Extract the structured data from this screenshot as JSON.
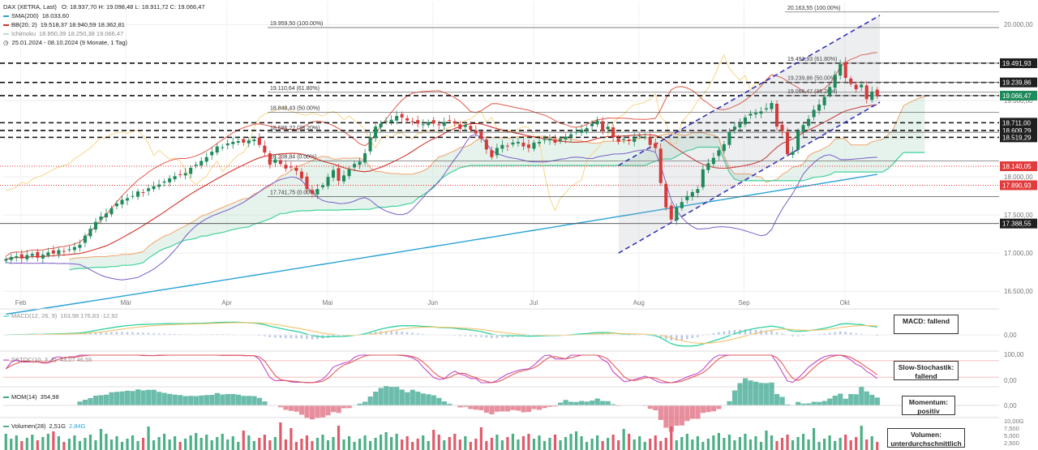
{
  "legend": {
    "main": "DAX (XETRA, Last)",
    "ohlc": "O: 18.937,70  H: 19.098,48  L: 18.911,72  C: 19.066,47",
    "sma_name": "SMA(200)",
    "sma_value": "18.033,60",
    "bb_name": "BB(20, 2)",
    "bb_values": "19.518,37  18.940,59  18.362,81",
    "ichimoku_name": "Ichimoku",
    "ichimoku_values": "18.850,39  18.250,38  19.066,47",
    "period": "25.01.2024 - 08.10.2024  (9 Monate, 1 Tag)",
    "macd_name": "MACD(12, 26, 9)",
    "macd_values": "163,98  176,83  -12,92",
    "sstoc_name": "SSTOC(10, 3, 3)",
    "sstoc_values": "43,07  46,55",
    "mom_name": "MOM(14)",
    "mom_value": "354,98",
    "vol_name": "Volumen(28)",
    "vol_value": "2,51G",
    "vol_avg": "2,84G"
  },
  "boxes": {
    "macd": "MACD: fallend",
    "stoch": "Slow-Stochastik: fallend",
    "mom": "Momentum: positiv",
    "vol": "Volumen: unterdurchschnittlich"
  },
  "colors": {
    "up": "#1f8a5b",
    "down": "#d63a3a",
    "sma": "#2aa3d6",
    "bb_mid": "#d0342c",
    "bb_band": "#e05a4a",
    "bb_low": "#7b5cc9",
    "kumo": "#b8dcc8",
    "ichi_a": "#f2a36b",
    "ichi_b": "#3fd39b",
    "chikou": "#f7d78a",
    "channel": "#2a2ab8",
    "macd": "#2ed1a0",
    "signal": "#f2c36b",
    "hist": "#b7c6e6",
    "stoch_k": "#c04bc8",
    "stoch_d": "#e25b5b",
    "mom": "#3aa58e",
    "mom_neg": "#e06a7e",
    "vol_up": "#4caf85",
    "vol_down": "#e05a6a"
  },
  "chart_data": [
    {
      "type": "candlestick",
      "title": "DAX (XETRA, Last)",
      "x_range": [
        "25.01.2024",
        "08.10.2024"
      ],
      "xticks": [
        "Feb",
        "Mär",
        "Apr",
        "Mai",
        "Jun",
        "Jul",
        "Aug",
        "Sep",
        "Okt"
      ],
      "xtick_pos": [
        0.02,
        0.14,
        0.255,
        0.37,
        0.49,
        0.605,
        0.725,
        0.845,
        0.96
      ],
      "yticks": [
        16500,
        17000,
        17500,
        18000,
        18500,
        19000,
        19500,
        20000
      ],
      "ytick_labels": [
        "16.500,00",
        "17.000,00",
        "17.500,00",
        "18.000,00",
        "18.500,00",
        "19.000,00",
        "19.500,00",
        "20.000,00"
      ],
      "ylim": [
        16300,
        20300
      ],
      "close": [
        16920,
        16950,
        16960,
        16930,
        16975,
        16990,
        16940,
        16980,
        17010,
        16995,
        17040,
        17020,
        17050,
        17080,
        17110,
        17230,
        17320,
        17410,
        17480,
        17520,
        17590,
        17650,
        17700,
        17720,
        17750,
        17810,
        17790,
        17850,
        17880,
        17900,
        17940,
        17980,
        18010,
        18030,
        18050,
        18120,
        18160,
        18210,
        18260,
        18330,
        18400,
        18390,
        18440,
        18460,
        18470,
        18450,
        18480,
        18490,
        18420,
        18320,
        18160,
        18230,
        18170,
        18110,
        18130,
        18080,
        17980,
        17840,
        17780,
        17840,
        17890,
        18000,
        18090,
        17950,
        18020,
        18100,
        18170,
        18200,
        18310,
        18520,
        18660,
        18700,
        18730,
        18750,
        18800,
        18780,
        18740,
        18720,
        18700,
        18690,
        18720,
        18700,
        18680,
        18720,
        18740,
        18700,
        18630,
        18680,
        18620,
        18570,
        18500,
        18360,
        18260,
        18380,
        18420,
        18400,
        18450,
        18460,
        18400,
        18380,
        18450,
        18460,
        18490,
        18500,
        18450,
        18500,
        18530,
        18560,
        18590,
        18620,
        18640,
        18700,
        18740,
        18600,
        18660,
        18520,
        18460,
        18500,
        18470,
        18510,
        18540,
        18530,
        18420,
        18380,
        17920,
        17600,
        17440,
        17600,
        17670,
        17750,
        17800,
        17840,
        18100,
        18180,
        18250,
        18350,
        18430,
        18590,
        18660,
        18700,
        18780,
        18830,
        18840,
        18860,
        18900,
        18970,
        18660,
        18600,
        18300,
        18330,
        18600,
        18680,
        18760,
        18880,
        18950,
        19050,
        19180,
        19340,
        19480,
        19300,
        19220,
        19150,
        19210,
        19020,
        19120,
        19066
      ],
      "annotations": [
        {
          "label": "20.163,55 (100.00%)",
          "y": 20163.55
        },
        {
          "label": "19.959,50 (100.00%)",
          "y": 19959.5
        },
        {
          "label": "19.491,93 (61.80%)",
          "y": 19491.93
        },
        {
          "label": "19.239,86 (50.00%)",
          "y": 19239.86
        },
        {
          "label": "19.110,64 (61.80%)",
          "y": 19110.64
        },
        {
          "label": "19.066,47 (38.20%)",
          "y": 19066.47
        },
        {
          "label": "18.848,43 (50.00%)",
          "y": 18848.43
        },
        {
          "label": "18.586,22 (38.20%)",
          "y": 18586.22
        },
        {
          "label": "18.208,84 (0.00%)",
          "y": 18208.84
        },
        {
          "label": "17.741,75 (0.00%)",
          "y": 17741.75
        }
      ],
      "price_tags": [
        {
          "label": "19.491,93",
          "y": 19491.93,
          "style": "dark"
        },
        {
          "label": "19.239,86",
          "y": 19239.86,
          "style": "dark"
        },
        {
          "label": "19.066,47",
          "y": 19066.47,
          "style": "green"
        },
        {
          "label": "18.711,00",
          "y": 18711.0,
          "style": "dark"
        },
        {
          "label": "18.609,29",
          "y": 18609.29,
          "style": "dark"
        },
        {
          "label": "18.519,29",
          "y": 18519.29,
          "style": "dark"
        },
        {
          "label": "18.140,05",
          "y": 18140.05,
          "style": "red"
        },
        {
          "label": "17.890,93",
          "y": 17890.93,
          "style": "red"
        },
        {
          "label": "17.388,55",
          "y": 17388.55,
          "style": "dark"
        }
      ],
      "dashed_levels": [
        19491.93,
        19239.86,
        19066.47,
        18711.0,
        18609.29,
        18519.29
      ],
      "red_dotted_levels": [
        18140.05,
        17890.93
      ],
      "sma200_end": 18033.6
    },
    {
      "type": "line",
      "name": "MACD",
      "yticks": [
        "0,00"
      ],
      "macd_last": 163.98,
      "signal_last": 176.83,
      "hist_last": -12.92
    },
    {
      "type": "line",
      "name": "Slow-Stochastik",
      "yticks": [
        "100,00",
        "0,00"
      ],
      "k_last": 43.07,
      "d_last": 46.55
    },
    {
      "type": "area",
      "name": "Momentum",
      "yticks": [
        "0,00"
      ],
      "last": 354.98
    },
    {
      "type": "bar",
      "name": "Volumen",
      "yticks": [
        "10,00G",
        "7,500",
        "5,000",
        "2,500"
      ],
      "last": "2,51G",
      "avg": "2,84G"
    }
  ]
}
